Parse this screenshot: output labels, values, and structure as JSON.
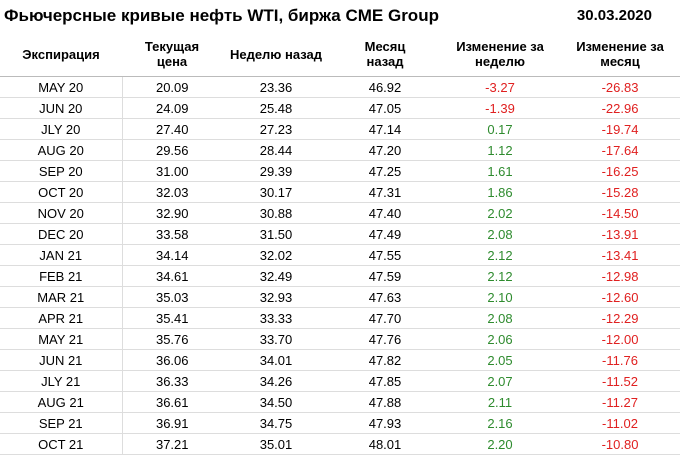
{
  "header": {
    "title": "Фьючерсные кривые нефть WTI, биржа CME Group",
    "date": "30.03.2020"
  },
  "table": {
    "columns": [
      "Экспирация",
      "Текущая цена",
      "Неделю назад",
      "Месяц назад",
      "Изменение за неделю",
      "Изменение за месяц"
    ],
    "positive_color": "#2e8b2e",
    "negative_color": "#e02020",
    "rows": [
      [
        "MAY 20",
        "20.09",
        "23.36",
        "46.92",
        "-3.27",
        "-26.83"
      ],
      [
        "JUN 20",
        "24.09",
        "25.48",
        "47.05",
        "-1.39",
        "-22.96"
      ],
      [
        "JLY 20",
        "27.40",
        "27.23",
        "47.14",
        "0.17",
        "-19.74"
      ],
      [
        "AUG 20",
        "29.56",
        "28.44",
        "47.20",
        "1.12",
        "-17.64"
      ],
      [
        "SEP 20",
        "31.00",
        "29.39",
        "47.25",
        "1.61",
        "-16.25"
      ],
      [
        "OCT 20",
        "32.03",
        "30.17",
        "47.31",
        "1.86",
        "-15.28"
      ],
      [
        "NOV 20",
        "32.90",
        "30.88",
        "47.40",
        "2.02",
        "-14.50"
      ],
      [
        "DEC 20",
        "33.58",
        "31.50",
        "47.49",
        "2.08",
        "-13.91"
      ],
      [
        "JAN 21",
        "34.14",
        "32.02",
        "47.55",
        "2.12",
        "-13.41"
      ],
      [
        "FEB 21",
        "34.61",
        "32.49",
        "47.59",
        "2.12",
        "-12.98"
      ],
      [
        "MAR 21",
        "35.03",
        "32.93",
        "47.63",
        "2.10",
        "-12.60"
      ],
      [
        "APR 21",
        "35.41",
        "33.33",
        "47.70",
        "2.08",
        "-12.29"
      ],
      [
        "MAY 21",
        "35.76",
        "33.70",
        "47.76",
        "2.06",
        "-12.00"
      ],
      [
        "JUN 21",
        "36.06",
        "34.01",
        "47.82",
        "2.05",
        "-11.76"
      ],
      [
        "JLY 21",
        "36.33",
        "34.26",
        "47.85",
        "2.07",
        "-11.52"
      ],
      [
        "AUG 21",
        "36.61",
        "34.50",
        "47.88",
        "2.11",
        "-11.27"
      ],
      [
        "SEP 21",
        "36.91",
        "34.75",
        "47.93",
        "2.16",
        "-11.02"
      ],
      [
        "OCT 21",
        "37.21",
        "35.01",
        "48.01",
        "2.20",
        "-10.80"
      ]
    ]
  }
}
